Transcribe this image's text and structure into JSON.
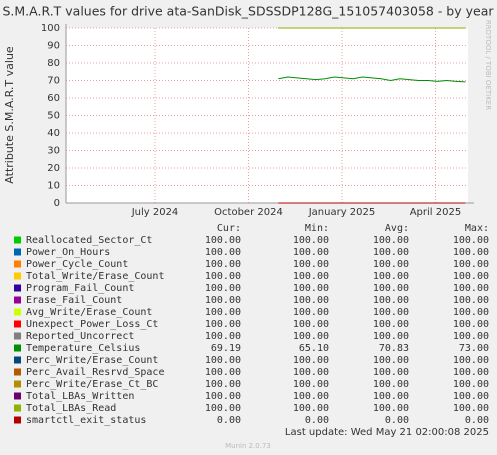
{
  "chart_data": {
    "type": "line",
    "title": "S.M.A.R.T values for drive ata-SanDisk_SDSSDP128G_151057403058 - by year",
    "y_label": "Attribute S.M.A.R.T value",
    "watermark": "RRDTOOL / TOBI OETIKER",
    "footer": "Last update: Wed May 21 02:00:08 2025",
    "version": "Munin 2.0.73",
    "xlim": [
      2024.262,
      2025.337
    ],
    "xticks": [
      {
        "value": 2024.5,
        "label": "July 2024"
      },
      {
        "value": 2024.75,
        "label": "October 2024"
      },
      {
        "value": 2025.0,
        "label": "January 2025"
      },
      {
        "value": 2025.25,
        "label": "April 2025"
      }
    ],
    "ylim": [
      0,
      100
    ],
    "yticks": [
      0,
      10,
      20,
      30,
      40,
      50,
      60,
      70,
      80,
      90,
      100
    ],
    "grid": true,
    "x": [
      2024.83,
      2024.855,
      2024.88,
      2024.905,
      2024.93,
      2024.955,
      2024.98,
      2025.005,
      2025.03,
      2025.055,
      2025.08,
      2025.105,
      2025.13,
      2025.155,
      2025.18,
      2025.205,
      2025.23,
      2025.255,
      2025.28,
      2025.305,
      2025.33
    ],
    "series": [
      {
        "name": "Reallocated_Sector_Ct",
        "color": "#00cc00",
        "values": [
          100,
          100,
          100,
          100,
          100,
          100,
          100,
          100,
          100,
          100,
          100,
          100,
          100,
          100,
          100,
          100,
          100,
          100,
          100,
          100,
          100
        ]
      },
      {
        "name": "Power_On_Hours",
        "color": "#0066b3",
        "values": [
          100,
          100,
          100,
          100,
          100,
          100,
          100,
          100,
          100,
          100,
          100,
          100,
          100,
          100,
          100,
          100,
          100,
          100,
          100,
          100,
          100
        ]
      },
      {
        "name": "Power_Cycle_Count",
        "color": "#ff8000",
        "values": [
          100,
          100,
          100,
          100,
          100,
          100,
          100,
          100,
          100,
          100,
          100,
          100,
          100,
          100,
          100,
          100,
          100,
          100,
          100,
          100,
          100
        ]
      },
      {
        "name": "Total_Write/Erase_Count",
        "color": "#ffcc00",
        "values": [
          100,
          100,
          100,
          100,
          100,
          100,
          100,
          100,
          100,
          100,
          100,
          100,
          100,
          100,
          100,
          100,
          100,
          100,
          100,
          100,
          100
        ]
      },
      {
        "name": "Program_Fail_Count",
        "color": "#330099",
        "values": [
          100,
          100,
          100,
          100,
          100,
          100,
          100,
          100,
          100,
          100,
          100,
          100,
          100,
          100,
          100,
          100,
          100,
          100,
          100,
          100,
          100
        ]
      },
      {
        "name": "Erase_Fail_Count",
        "color": "#990099",
        "values": [
          100,
          100,
          100,
          100,
          100,
          100,
          100,
          100,
          100,
          100,
          100,
          100,
          100,
          100,
          100,
          100,
          100,
          100,
          100,
          100,
          100
        ]
      },
      {
        "name": "Avg_Write/Erase_Count",
        "color": "#ccff00",
        "values": [
          100,
          100,
          100,
          100,
          100,
          100,
          100,
          100,
          100,
          100,
          100,
          100,
          100,
          100,
          100,
          100,
          100,
          100,
          100,
          100,
          100
        ]
      },
      {
        "name": "Unexpect_Power_Loss_Ct",
        "color": "#ff0000",
        "values": [
          100,
          100,
          100,
          100,
          100,
          100,
          100,
          100,
          100,
          100,
          100,
          100,
          100,
          100,
          100,
          100,
          100,
          100,
          100,
          100,
          100
        ]
      },
      {
        "name": "Reported_Uncorrect",
        "color": "#808080",
        "values": [
          100,
          100,
          100,
          100,
          100,
          100,
          100,
          100,
          100,
          100,
          100,
          100,
          100,
          100,
          100,
          100,
          100,
          100,
          100,
          100,
          100
        ]
      },
      {
        "name": "Temperature_Celsius",
        "color": "#008f00",
        "values": [
          71,
          72,
          71.5,
          71,
          70.5,
          71,
          72,
          71.5,
          71,
          72,
          71.5,
          71,
          70,
          71,
          70.5,
          70,
          70,
          69.5,
          70,
          69.5,
          69.19
        ]
      },
      {
        "name": "Perc_Write/Erase_Count",
        "color": "#00487d",
        "values": [
          100,
          100,
          100,
          100,
          100,
          100,
          100,
          100,
          100,
          100,
          100,
          100,
          100,
          100,
          100,
          100,
          100,
          100,
          100,
          100,
          100
        ]
      },
      {
        "name": "Perc_Avail_Resrvd_Space",
        "color": "#b35a00",
        "values": [
          100,
          100,
          100,
          100,
          100,
          100,
          100,
          100,
          100,
          100,
          100,
          100,
          100,
          100,
          100,
          100,
          100,
          100,
          100,
          100,
          100
        ]
      },
      {
        "name": "Perc_Write/Erase_Ct_BC",
        "color": "#b38f00",
        "values": [
          100,
          100,
          100,
          100,
          100,
          100,
          100,
          100,
          100,
          100,
          100,
          100,
          100,
          100,
          100,
          100,
          100,
          100,
          100,
          100,
          100
        ]
      },
      {
        "name": "Total_LBAs_Written",
        "color": "#6b006b",
        "values": [
          100,
          100,
          100,
          100,
          100,
          100,
          100,
          100,
          100,
          100,
          100,
          100,
          100,
          100,
          100,
          100,
          100,
          100,
          100,
          100,
          100
        ]
      },
      {
        "name": "Total_LBAs_Read",
        "color": "#8fb300",
        "values": [
          100,
          100,
          100,
          100,
          100,
          100,
          100,
          100,
          100,
          100,
          100,
          100,
          100,
          100,
          100,
          100,
          100,
          100,
          100,
          100,
          100
        ]
      },
      {
        "name": "smartctl_exit_status",
        "color": "#b30000",
        "values": [
          0,
          0,
          0,
          0,
          0,
          0,
          0,
          0,
          0,
          0,
          0,
          0,
          0,
          0,
          0,
          0,
          0,
          0,
          0,
          0,
          0
        ]
      }
    ],
    "legend_stats": {
      "columns": [
        "Cur:",
        "Min:",
        "Avg:",
        "Max:"
      ],
      "rows": [
        [
          "100.00",
          "100.00",
          "100.00",
          "100.00"
        ],
        [
          "100.00",
          "100.00",
          "100.00",
          "100.00"
        ],
        [
          "100.00",
          "100.00",
          "100.00",
          "100.00"
        ],
        [
          "100.00",
          "100.00",
          "100.00",
          "100.00"
        ],
        [
          "100.00",
          "100.00",
          "100.00",
          "100.00"
        ],
        [
          "100.00",
          "100.00",
          "100.00",
          "100.00"
        ],
        [
          "100.00",
          "100.00",
          "100.00",
          "100.00"
        ],
        [
          "100.00",
          "100.00",
          "100.00",
          "100.00"
        ],
        [
          "100.00",
          "100.00",
          "100.00",
          "100.00"
        ],
        [
          "69.19",
          "65.10",
          "70.83",
          "73.00"
        ],
        [
          "100.00",
          "100.00",
          "100.00",
          "100.00"
        ],
        [
          "100.00",
          "100.00",
          "100.00",
          "100.00"
        ],
        [
          "100.00",
          "100.00",
          "100.00",
          "100.00"
        ],
        [
          "100.00",
          "100.00",
          "100.00",
          "100.00"
        ],
        [
          "100.00",
          "100.00",
          "100.00",
          "100.00"
        ],
        [
          "0.00",
          "0.00",
          "0.00",
          "0.00"
        ]
      ]
    }
  }
}
